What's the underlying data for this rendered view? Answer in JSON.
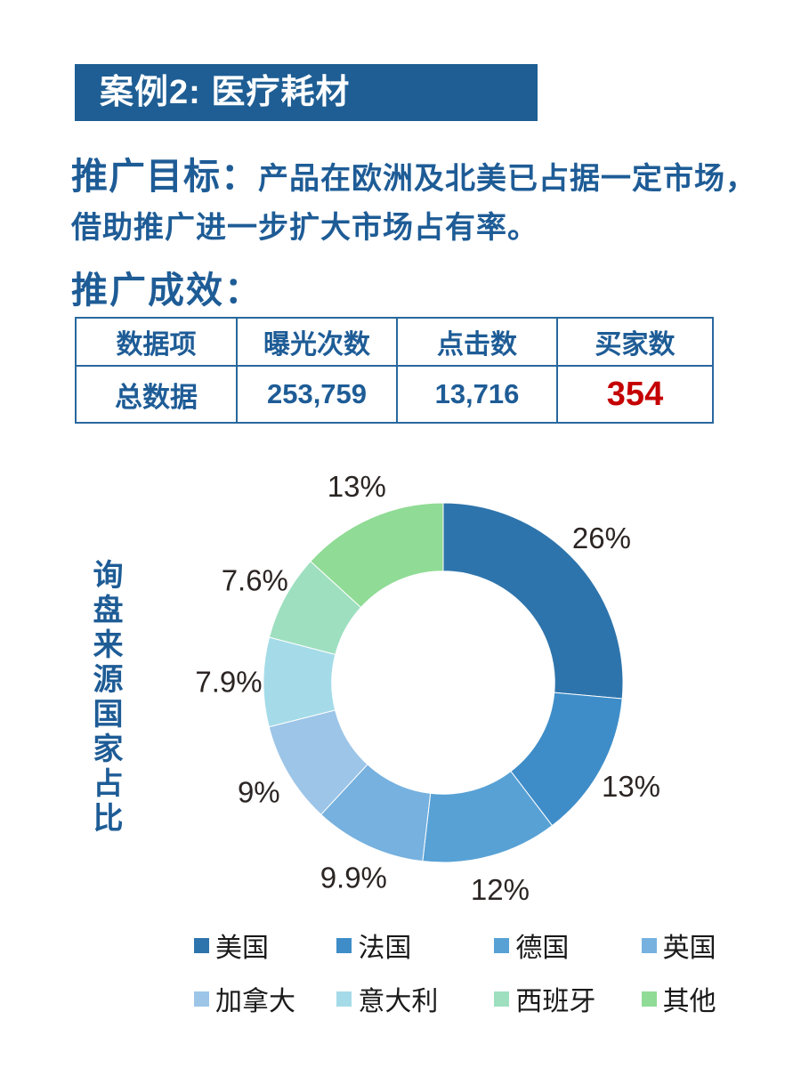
{
  "banner": {
    "title": "案例2: 医疗耗材"
  },
  "goal": {
    "label": "推广目标：",
    "line1": "产品在欧洲及北美已占据一定市场，",
    "line2": "借助推广进一步扩大市场占有率。"
  },
  "results": {
    "heading": "推广成效："
  },
  "table": {
    "headers": [
      "数据项",
      "曝光次数",
      "点击数",
      "买家数"
    ],
    "rows": [
      {
        "name": "总数据",
        "exposures": "253,759",
        "clicks": "13,716",
        "buyers": "354"
      }
    ]
  },
  "chart_data": {
    "type": "pie",
    "subtype": "donut",
    "title": "询盘来源国家占比",
    "categories": [
      "美国",
      "法国",
      "德国",
      "英国",
      "加拿大",
      "意大利",
      "西班牙",
      "其他"
    ],
    "values": [
      26,
      13,
      12,
      9.9,
      9,
      7.9,
      7.6,
      13
    ],
    "labels": [
      "26%",
      "13%",
      "12%",
      "9.9%",
      "9%",
      "7.9%",
      "7.6%",
      "13%"
    ],
    "colors": [
      "#2E74AC",
      "#3E8DC8",
      "#57A1D5",
      "#76B1DF",
      "#9CC5E8",
      "#A5DBE8",
      "#9EDFC0",
      "#90DB95"
    ],
    "start_angle_deg": 0,
    "direction": "clockwise",
    "donut_hole_ratio": 0.62,
    "legend_position": "bottom"
  },
  "style_colors": {
    "banner_bg": "#1E5E94",
    "heading_blue": "#1E5C96",
    "table_border": "#29689E",
    "highlight_red": "#C50000",
    "chart_label_text": "#2b2523"
  }
}
